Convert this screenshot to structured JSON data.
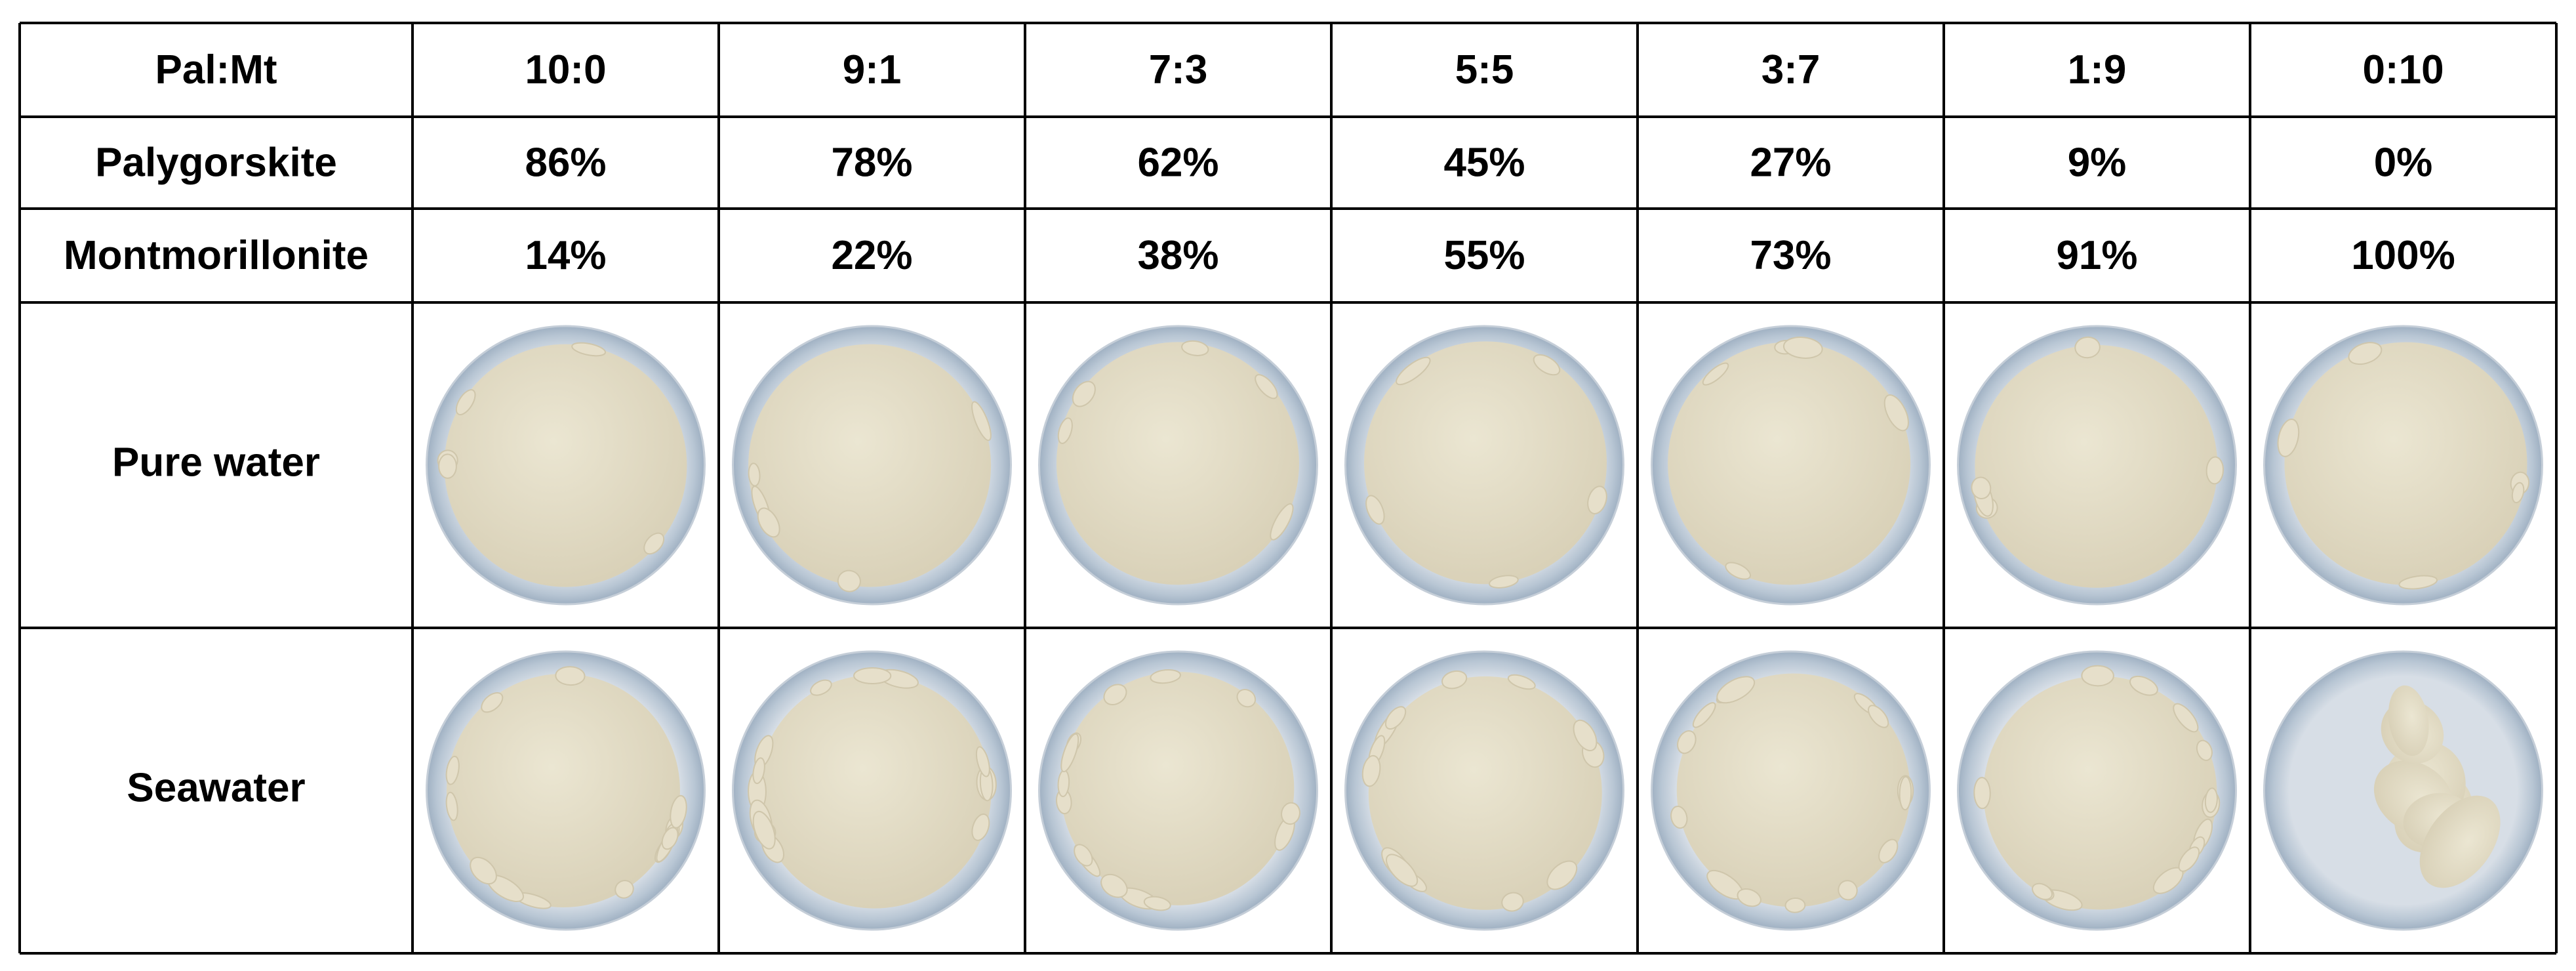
{
  "table": {
    "header": [
      "Pal:Mt",
      "10:0",
      "9:1",
      "7:3",
      "5:5",
      "3:7",
      "1:9",
      "0:10"
    ],
    "rows": [
      [
        "Palygorskite",
        "86%",
        "78%",
        "62%",
        "45%",
        "27%",
        "9%",
        "0%"
      ],
      [
        "Montmorillonite",
        "14%",
        "22%",
        "38%",
        "55%",
        "73%",
        "91%",
        "100%"
      ]
    ],
    "image_rows": [
      "Pure water",
      "Seawater"
    ]
  }
}
